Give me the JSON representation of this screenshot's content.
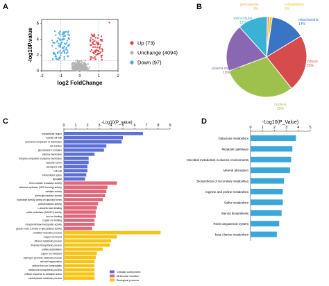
{
  "panels": {
    "a": {
      "letter": "A"
    },
    "b": {
      "letter": "B"
    },
    "c": {
      "letter": "C"
    },
    "d": {
      "letter": "D"
    }
  },
  "chart_data": [
    {
      "type": "scatter",
      "xlabel": "log2 FoldChange",
      "ylabel": "-log10P.value",
      "xlim": [
        -2,
        2
      ],
      "ylim": [
        0,
        6.5
      ],
      "xticks": [
        -2,
        -1,
        0,
        1,
        2
      ],
      "yticks": [
        0,
        2,
        4,
        6
      ],
      "legend_position": "right",
      "series": [
        {
          "name": "Up (73)",
          "color": "#e0393e",
          "count": 73
        },
        {
          "name": "Unchange (4094)",
          "color": "#b3b3b3",
          "count": 4094
        },
        {
          "name": "Down (97)",
          "color": "#3fa8dd",
          "count": 97
        }
      ]
    },
    {
      "type": "pie",
      "slices": [
        {
          "label": "peroxisome",
          "pct": "1%",
          "value": 1,
          "color": "#f4a24a"
        },
        {
          "label": "cytoskeleton",
          "pct": "1%",
          "value": 1,
          "color": "#f0c419"
        },
        {
          "label": "mitochondria",
          "pct": "14%",
          "value": 14,
          "color": "#3a74c5"
        },
        {
          "label": "cytosol",
          "pct": "23%",
          "value": 23,
          "color": "#d64c4c"
        },
        {
          "label": "nucleus",
          "pct": "30%",
          "value": 30,
          "color": "#9dc14c"
        },
        {
          "label": "plasma membrane",
          "pct": "19%",
          "value": 19,
          "color": "#8a67b3"
        },
        {
          "label": "extracellular",
          "pct": "12%",
          "value": 12,
          "color": "#3bb1d5"
        }
      ]
    },
    {
      "type": "bar",
      "orientation": "horizontal",
      "title": "-Log10(P_value)",
      "xlim": [
        0,
        9
      ],
      "xticks": [
        0,
        1,
        2,
        3,
        4,
        5,
        6,
        7,
        8,
        9
      ],
      "legend_position": "bottom-right",
      "groups": [
        {
          "name": "Cellular component",
          "color": "#5b6fd6"
        },
        {
          "name": "Molecular function",
          "color": "#e0687b"
        },
        {
          "name": "Biological process",
          "color": "#f6c414"
        }
      ],
      "bars": [
        {
          "label": "extracellular region",
          "value": 6.7,
          "group": 0
        },
        {
          "label": "hyphal cell wall",
          "value": 5.0,
          "group": 0
        },
        {
          "label": "anchored component of membrane",
          "value": 4.9,
          "group": 0
        },
        {
          "label": "cell surface",
          "value": 3.6,
          "group": 0
        },
        {
          "label": "glucosidase II complex",
          "value": 3.4,
          "group": 0
        },
        {
          "label": "plasma membrane",
          "value": 2.6,
          "group": 0
        },
        {
          "label": "integral component of plasma membrane",
          "value": 2.1,
          "group": 0
        },
        {
          "label": "vacuolar lumen",
          "value": 2.1,
          "group": 0
        },
        {
          "label": "ascospore wall",
          "value": 2.0,
          "group": 0
        },
        {
          "label": "cell wall",
          "value": 2.0,
          "group": 0
        },
        {
          "label": "extracellular space",
          "value": 1.9,
          "group": 0
        },
        {
          "label": "apoplast",
          "value": 1.8,
          "group": 0
        },
        {
          "label": "ferric-chelate reductase activity",
          "value": 4.5,
          "group": 1
        },
        {
          "label": "cellulose synthase (UDP-forming) activity",
          "value": 3.7,
          "group": 1
        },
        {
          "label": "catalytic activity",
          "value": 3.6,
          "group": 1
        },
        {
          "label": "alpha-glucosidase activity",
          "value": 3.5,
          "group": 1
        },
        {
          "label": "hydrolase activity, acting on glycosyl bonds",
          "value": 3.3,
          "group": 1
        },
        {
          "label": "oxidoreductase activity",
          "value": 2.9,
          "group": 1
        },
        {
          "label": "L-ascorbic acid binding",
          "value": 2.8,
          "group": 1
        },
        {
          "label": "sulfite reductase (NADPH) activity",
          "value": 2.7,
          "group": 1
        },
        {
          "label": "iron ion binding",
          "value": 2.7,
          "group": 1
        },
        {
          "label": "copper ion binding",
          "value": 2.6,
          "group": 1
        },
        {
          "label": "transmembrane transporter activity",
          "value": 2.6,
          "group": 1
        },
        {
          "label": "glucan endo-1,3-beta-D-glucosidase activity",
          "value": 2.4,
          "group": 1
        },
        {
          "label": "oxidation-reduction process",
          "value": 8.2,
          "group": 2
        },
        {
          "label": "copper ion import",
          "value": 4.5,
          "group": 2
        },
        {
          "label": "ethanol metabolic process",
          "value": 4.0,
          "group": 2
        },
        {
          "label": "thiamine biosynthetic process",
          "value": 3.9,
          "group": 2
        },
        {
          "label": "sulfate assimilation",
          "value": 3.3,
          "group": 2
        },
        {
          "label": "copper ion transport",
          "value": 2.8,
          "group": 2
        },
        {
          "label": "hydrogen peroxide catabolic process",
          "value": 2.7,
          "group": 2
        },
        {
          "label": "cell wall organization",
          "value": 2.6,
          "group": 2
        },
        {
          "label": "cellular iron ion homeostasis",
          "value": 2.6,
          "group": 2
        },
        {
          "label": "methionine biosynthetic process",
          "value": 2.6,
          "group": 2
        },
        {
          "label": "cellular response to oxidative stress",
          "value": 2.6,
          "group": 2
        },
        {
          "label": "carbohydrate metabolic process",
          "value": 2.6,
          "group": 2
        }
      ]
    },
    {
      "type": "bar",
      "orientation": "horizontal",
      "title": "-Log10(P_Value)",
      "xlim": [
        0,
        5
      ],
      "xticks": [
        0,
        1,
        2,
        3,
        4,
        5
      ],
      "color": "#3aa7d8",
      "bars": [
        {
          "label": "Galactose metabolism",
          "value": 3.8
        },
        {
          "label": "Metabolic pathways",
          "value": 3.5
        },
        {
          "label": "Microbial metabolism in diverse environments",
          "value": 3.4
        },
        {
          "label": "Mineral absorption",
          "value": 3.3
        },
        {
          "label": "Biosynthesis of secondary metabolites",
          "value": 2.8
        },
        {
          "label": "Arginine and proline metabolism",
          "value": 2.7
        },
        {
          "label": "Sulfur metabolism",
          "value": 2.7
        },
        {
          "label": "Steroid biosynthesis",
          "value": 2.6
        },
        {
          "label": "Renin-angiotensin system",
          "value": 2.4
        },
        {
          "label": "beta-Alanine metabolism",
          "value": 2.2
        }
      ]
    }
  ]
}
